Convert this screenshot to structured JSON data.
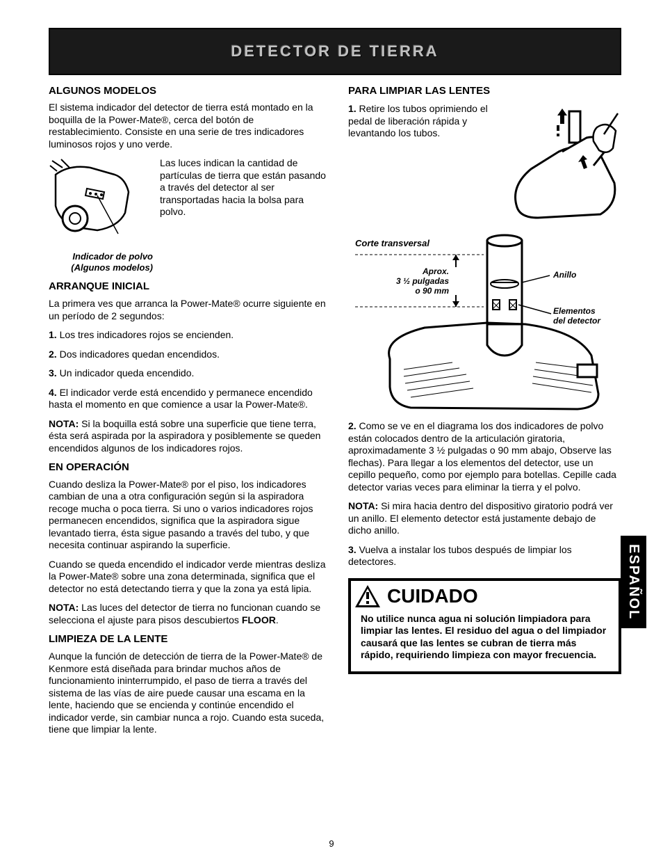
{
  "banner": "DETECTOR DE TIERRA",
  "left": {
    "h1": "ALGUNOS MODELOS",
    "p1": "El sistema indicador del detector de tierra está montado en la boquilla de la Power-Mate®, cerca del botón de restablecimiento. Consiste en una serie de tres indicadores luminosos rojos y uno verde.",
    "fig1_cap1": "Indicador de polvo",
    "fig1_cap2": "(Algunos modelos)",
    "fig1_side": "Las luces indican la cantidad de partículas de tierra que están pasando a través del detector al ser transportadas hacia la bolsa para polvo.",
    "h2": "ARRANQUE INICIAL",
    "p2": "La primera ves que arranca la Power-Mate® ocurre siguiente en un período de 2 segundos:",
    "li1": "1. Los tres indicadores rojos se encienden.",
    "li2": "2. Dos indicadores quedan encendidos.",
    "li3": "3. Un indicador queda encendido.",
    "li4": "4. El indicador verde está encendido y permanece encendido hasta el momento en que comience a usar la Power-Mate®.",
    "nota1_l": "NOTA:",
    "nota1": " Si la boquilla está sobre una superficie que tiene terra, ésta será aspirada por la aspiradora y posiblemente se queden encendidos algunos de los indicadores rojos.",
    "h3": "EN OPERACIÓN",
    "p3": "Cuando desliza la Power-Mate® por el piso, los indicadores cambian de una a otra configuración según si la aspiradora recoge mucha o poca tierra. Si uno o varios indicadores rojos permanecen encendidos, significa que la aspiradora sigue levantado tierra, ésta sigue pasando a través del tubo, y que necesita continuar aspirando la superficie.",
    "p4": "Cuando se queda encendido el indicador verde mientras desliza la Power-Mate® sobre una zona determinada, significa que el detector no está detectando tierra y que la zona ya está lipia.",
    "nota2_l": "NOTA:",
    "nota2a": " Las luces del detector de tierra no funcionan cuando se selecciona el ajuste para pisos descubiertos ",
    "nota2b": "FLOOR",
    "nota2c": ".",
    "h4": "LIMPIEZA DE LA LENTE",
    "p5": "Aunque la función de detección de tierra de la Power-Mate® de Kenmore está diseñada para brindar muchos años de funcionamiento ininterrumpido, el paso de tierra a través del sistema de las vías de aire puede causar una escama en la lente, haciendo que se encienda y continúe encendido el indicador verde, sin cambiar nunca a rojo. Cuando esta suceda, tiene que limpiar la lente."
  },
  "right": {
    "h1": "PARA LIMPIAR LAS LENTES",
    "step1": "1. Retire los tubos oprimiendo el pedal de liberación rápida y levantando los tubos.",
    "dlabel_corte": "Corte transversal",
    "dlabel_aprox": "Aprox.",
    "dlabel_med": "3 ½ pulgadas",
    "dlabel_mm": "o 90 mm",
    "dlabel_anillo": "Anillo",
    "dlabel_elem": "Elementos del detector",
    "step2": "2. Como se ve en el diagrama los dos indicadores de polvo están colocados dentro de la articulación giratoria, aproximadamente 3 ½ pulgadas o 90 mm abajo, Observe las flechas). Para llegar a los elementos del detector, use un cepillo pequeño, como por ejemplo para botellas. Cepille cada detector varias veces para eliminar la tierra y el polvo.",
    "nota_l": "NOTA:",
    "nota": " Si mira hacia dentro del dispositivo giratorio podrá ver un anillo. El elemento detector está justamente debajo de dicho anillo.",
    "step3": "3. Vuelva a instalar los tubos después de limpiar los detectores.",
    "cuidado_t": "CUIDADO",
    "cuidado_b": "No utilice nunca agua ni solución limpiadora para limpiar las lentes. El residuo del agua o del limpiador causará que las lentes se cubran de tierra más rápido, requiriendo limpieza con mayor frecuencia."
  },
  "sidetab": "ESPAÑOL",
  "pagenum": "9",
  "colors": {
    "black": "#000000",
    "white": "#ffffff",
    "bannerbg": "#1a1a1a"
  }
}
